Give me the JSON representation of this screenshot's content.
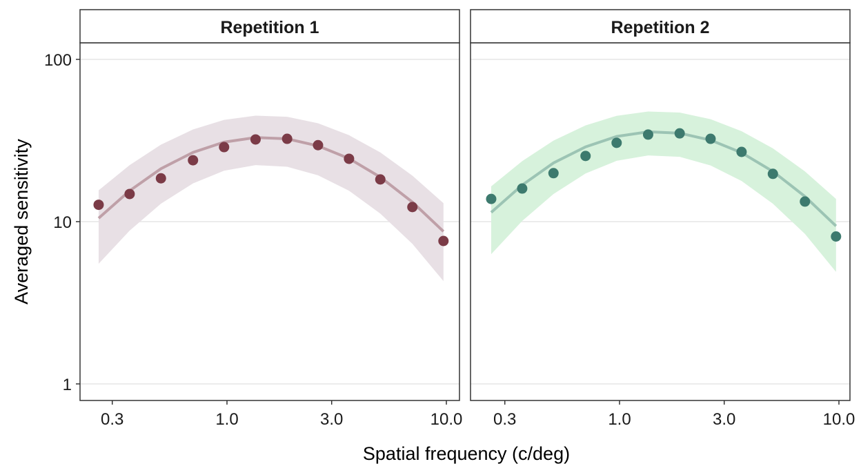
{
  "chart_data": [
    {
      "type": "scatter",
      "title": "Repetition 1",
      "xlabel": "Spatial frequency (c/deg)",
      "ylabel": "Averaged sensitivity",
      "xscale": "log",
      "yscale": "log",
      "xticks": [
        0.3,
        1.0,
        3.0,
        10.0
      ],
      "xtick_labels": [
        "0.3",
        "1.0",
        "3.0",
        "10.0"
      ],
      "yticks": [
        1,
        10,
        100
      ],
      "ytick_labels": [
        "1",
        "10",
        "100"
      ],
      "grid": "horizontal major",
      "colors": {
        "point": "#7b3b47",
        "line": "#bfa0a8",
        "band": "#e8e0e5"
      },
      "x": [
        0.26,
        0.36,
        0.5,
        0.7,
        0.97,
        1.35,
        1.88,
        2.6,
        3.6,
        5.0,
        7.0,
        9.7
      ],
      "points": [
        12.7,
        14.8,
        18.5,
        23.9,
        28.8,
        32.1,
        32.4,
        29.6,
        24.4,
        18.2,
        12.3,
        7.6
      ],
      "fit": [
        10.5,
        15.5,
        21.2,
        26.7,
        30.9,
        33.0,
        32.4,
        29.3,
        24.5,
        18.8,
        13.2,
        8.7
      ],
      "fit_upper": [
        15.6,
        22.3,
        29.8,
        37.0,
        42.4,
        45.0,
        44.3,
        40.4,
        34.1,
        26.7,
        19.2,
        13.0
      ],
      "fit_lower": [
        5.5,
        8.8,
        12.9,
        17.2,
        20.6,
        22.3,
        21.8,
        19.3,
        15.5,
        11.2,
        7.3,
        4.3
      ]
    },
    {
      "type": "scatter",
      "title": "Repetition 2",
      "xlabel": "Spatial frequency (c/deg)",
      "ylabel": "Averaged sensitivity",
      "xscale": "log",
      "yscale": "log",
      "xticks": [
        0.3,
        1.0,
        3.0,
        10.0
      ],
      "xtick_labels": [
        "0.3",
        "1.0",
        "3.0",
        "10.0"
      ],
      "yticks": [
        1,
        10,
        100
      ],
      "ytick_labels": [
        "1",
        "10",
        "100"
      ],
      "grid": "horizontal major",
      "colors": {
        "point": "#3d7a6e",
        "line": "#9cc4b4",
        "band": "#d7f2dc"
      },
      "x": [
        0.26,
        0.36,
        0.5,
        0.7,
        0.97,
        1.35,
        1.88,
        2.6,
        3.6,
        5.0,
        7.0,
        9.7
      ],
      "points": [
        13.8,
        16.0,
        19.9,
        25.4,
        30.6,
        34.4,
        35.0,
        32.4,
        26.9,
        19.7,
        13.3,
        8.1
      ],
      "fit": [
        11.4,
        16.8,
        23.0,
        28.9,
        33.5,
        35.8,
        35.1,
        31.8,
        26.6,
        20.4,
        14.3,
        9.4
      ],
      "fit_upper": [
        16.5,
        23.6,
        31.6,
        39.2,
        44.9,
        47.7,
        47.0,
        42.8,
        36.1,
        28.3,
        20.4,
        13.8
      ],
      "fit_lower": [
        6.3,
        10.1,
        14.8,
        19.8,
        23.7,
        25.6,
        25.1,
        22.2,
        17.8,
        12.9,
        8.4,
        4.9
      ]
    }
  ],
  "axes": {
    "xlabel": "Spatial frequency (c/deg)",
    "ylabel": "Averaged sensitivity"
  }
}
